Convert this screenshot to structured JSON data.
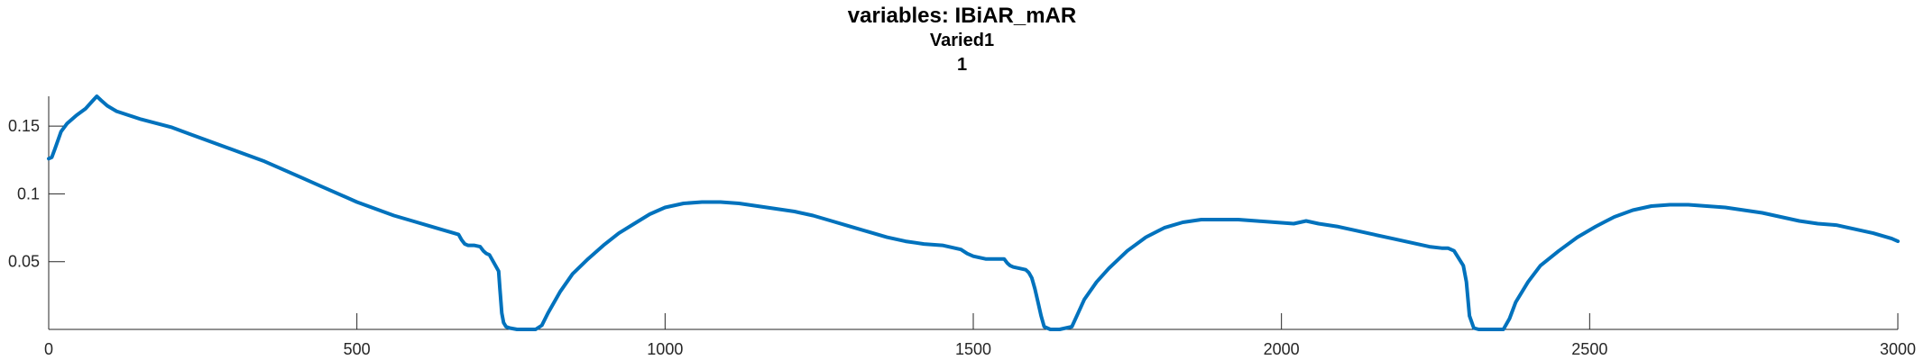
{
  "chart_data": {
    "type": "line",
    "title": "variables: IBiAR_mAR",
    "subtitle_lines": [
      "Varied1",
      "1"
    ],
    "xlabel": "",
    "ylabel": "",
    "xlim": [
      0,
      3000
    ],
    "ylim": [
      0,
      0.172
    ],
    "x_ticks": [
      0,
      500,
      1000,
      1500,
      2000,
      2500,
      3000
    ],
    "x_tick_labels": [
      "0",
      "500",
      "1000",
      "1500",
      "2000",
      "2500",
      "3000"
    ],
    "y_ticks": [
      0.05,
      0.1,
      0.15
    ],
    "y_tick_labels": [
      "0.05",
      "0.1",
      "0.15"
    ],
    "grid": false,
    "line_color": "#0072BD",
    "series": [
      {
        "x": [
          0,
          5,
          10,
          20,
          30,
          45,
          60,
          70,
          78,
          85,
          95,
          110,
          130,
          150,
          175,
          200,
          230,
          260,
          290,
          320,
          350,
          380,
          410,
          440,
          470,
          500,
          530,
          560,
          590,
          620,
          650,
          665,
          670,
          675,
          680,
          690,
          700,
          705,
          710,
          715,
          720,
          730,
          732,
          735,
          738,
          742,
          748,
          760,
          775,
          790,
          800,
          810,
          830,
          850,
          875,
          900,
          925,
          950,
          975,
          1000,
          1030,
          1060,
          1090,
          1120,
          1150,
          1180,
          1210,
          1240,
          1270,
          1300,
          1330,
          1360,
          1390,
          1420,
          1450,
          1480,
          1490,
          1500,
          1510,
          1520,
          1535,
          1550,
          1555,
          1560,
          1565,
          1575,
          1585,
          1590,
          1595,
          1600,
          1605,
          1610,
          1615,
          1625,
          1640,
          1660,
          1670,
          1680,
          1700,
          1720,
          1750,
          1780,
          1810,
          1840,
          1870,
          1900,
          1930,
          1960,
          1990,
          2020,
          2040,
          2060,
          2090,
          2120,
          2150,
          2180,
          2210,
          2240,
          2260,
          2270,
          2280,
          2295,
          2300,
          2305,
          2312,
          2320,
          2340,
          2360,
          2370,
          2380,
          2400,
          2420,
          2450,
          2480,
          2510,
          2540,
          2570,
          2600,
          2630,
          2660,
          2690,
          2720,
          2750,
          2780,
          2810,
          2840,
          2870,
          2900,
          2930,
          2960,
          2990,
          3000
        ],
        "y": [
          0.126,
          0.127,
          0.133,
          0.146,
          0.152,
          0.158,
          0.163,
          0.168,
          0.172,
          0.169,
          0.165,
          0.161,
          0.158,
          0.155,
          0.152,
          0.149,
          0.144,
          0.139,
          0.134,
          0.129,
          0.124,
          0.118,
          0.112,
          0.106,
          0.1,
          0.094,
          0.089,
          0.084,
          0.08,
          0.076,
          0.072,
          0.07,
          0.066,
          0.063,
          0.062,
          0.062,
          0.061,
          0.058,
          0.056,
          0.055,
          0.051,
          0.043,
          0.03,
          0.012,
          0.005,
          0.002,
          0.001,
          0.0,
          0.0,
          0.0,
          0.003,
          0.012,
          0.028,
          0.041,
          0.052,
          0.062,
          0.071,
          0.078,
          0.085,
          0.09,
          0.093,
          0.094,
          0.094,
          0.093,
          0.091,
          0.089,
          0.087,
          0.084,
          0.08,
          0.076,
          0.072,
          0.068,
          0.065,
          0.063,
          0.062,
          0.059,
          0.056,
          0.054,
          0.053,
          0.052,
          0.052,
          0.052,
          0.049,
          0.047,
          0.046,
          0.045,
          0.044,
          0.042,
          0.038,
          0.03,
          0.02,
          0.01,
          0.002,
          0.0,
          0.0,
          0.002,
          0.012,
          0.022,
          0.035,
          0.045,
          0.058,
          0.068,
          0.075,
          0.079,
          0.081,
          0.081,
          0.081,
          0.08,
          0.079,
          0.078,
          0.08,
          0.078,
          0.076,
          0.073,
          0.07,
          0.067,
          0.064,
          0.061,
          0.06,
          0.06,
          0.058,
          0.047,
          0.035,
          0.01,
          0.001,
          0.0,
          0.0,
          0.0,
          0.008,
          0.02,
          0.035,
          0.047,
          0.058,
          0.068,
          0.076,
          0.083,
          0.088,
          0.091,
          0.092,
          0.092,
          0.091,
          0.09,
          0.088,
          0.086,
          0.083,
          0.08,
          0.078,
          0.077,
          0.074,
          0.071,
          0.067,
          0.065
        ]
      }
    ]
  }
}
